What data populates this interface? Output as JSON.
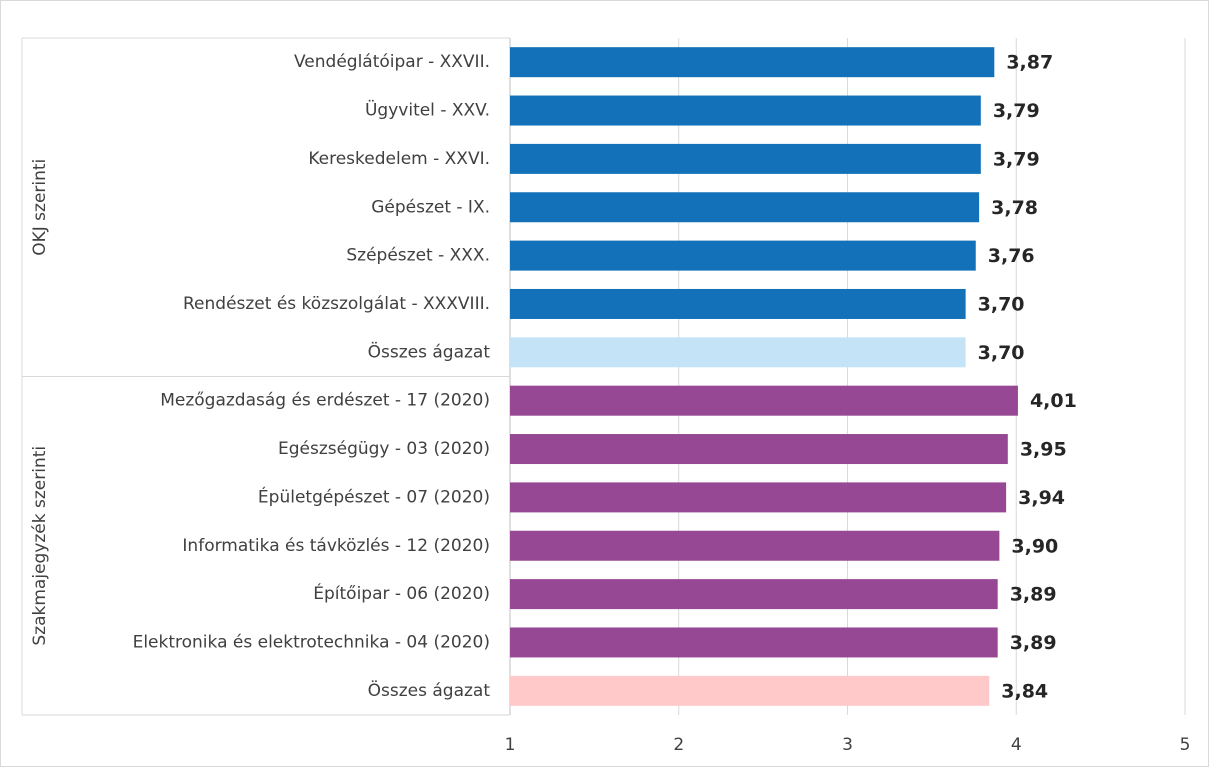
{
  "chart_data": {
    "type": "bar",
    "orientation": "horizontal",
    "xlim": [
      1,
      5
    ],
    "xticks": [
      1,
      2,
      3,
      4,
      5
    ],
    "grid": true,
    "groups": [
      {
        "name": "OKJ szerinti",
        "categories": [
          "Vendéglátóipar - XXVII.",
          "Ügyvitel - XXV.",
          "Kereskedelem - XXVI.",
          "Gépészet - IX.",
          "Szépészet - XXX.",
          "Rendészet és közszolgálat - XXXVIII.",
          "Összes ágazat"
        ],
        "values": [
          3.87,
          3.79,
          3.79,
          3.78,
          3.76,
          3.7,
          3.7
        ],
        "value_labels": [
          "3,87",
          "3,79",
          "3,79",
          "3,78",
          "3,76",
          "3,70",
          "3,70"
        ],
        "colors": [
          "#1271b9",
          "#1271b9",
          "#1271b9",
          "#1271b9",
          "#1271b9",
          "#1271b9",
          "#c5e3f7"
        ]
      },
      {
        "name": "Szakmajegyzék szerinti",
        "categories": [
          "Mezőgazdaság és erdészet - 17 (2020)",
          "Egészségügy - 03 (2020)",
          "Épületgépészet - 07 (2020)",
          "Informatika és távközlés - 12 (2020)",
          "Építőipar - 06 (2020)",
          "Elektronika és elektrotechnika - 04 (2020)",
          "Összes ágazat"
        ],
        "values": [
          4.01,
          3.95,
          3.94,
          3.9,
          3.89,
          3.89,
          3.84
        ],
        "value_labels": [
          "4,01",
          "3,95",
          "3,94",
          "3,90",
          "3,89",
          "3,89",
          "3,84"
        ],
        "colors": [
          "#974894",
          "#974894",
          "#974894",
          "#974894",
          "#974894",
          "#974894",
          "#ffc9c9"
        ]
      }
    ]
  }
}
